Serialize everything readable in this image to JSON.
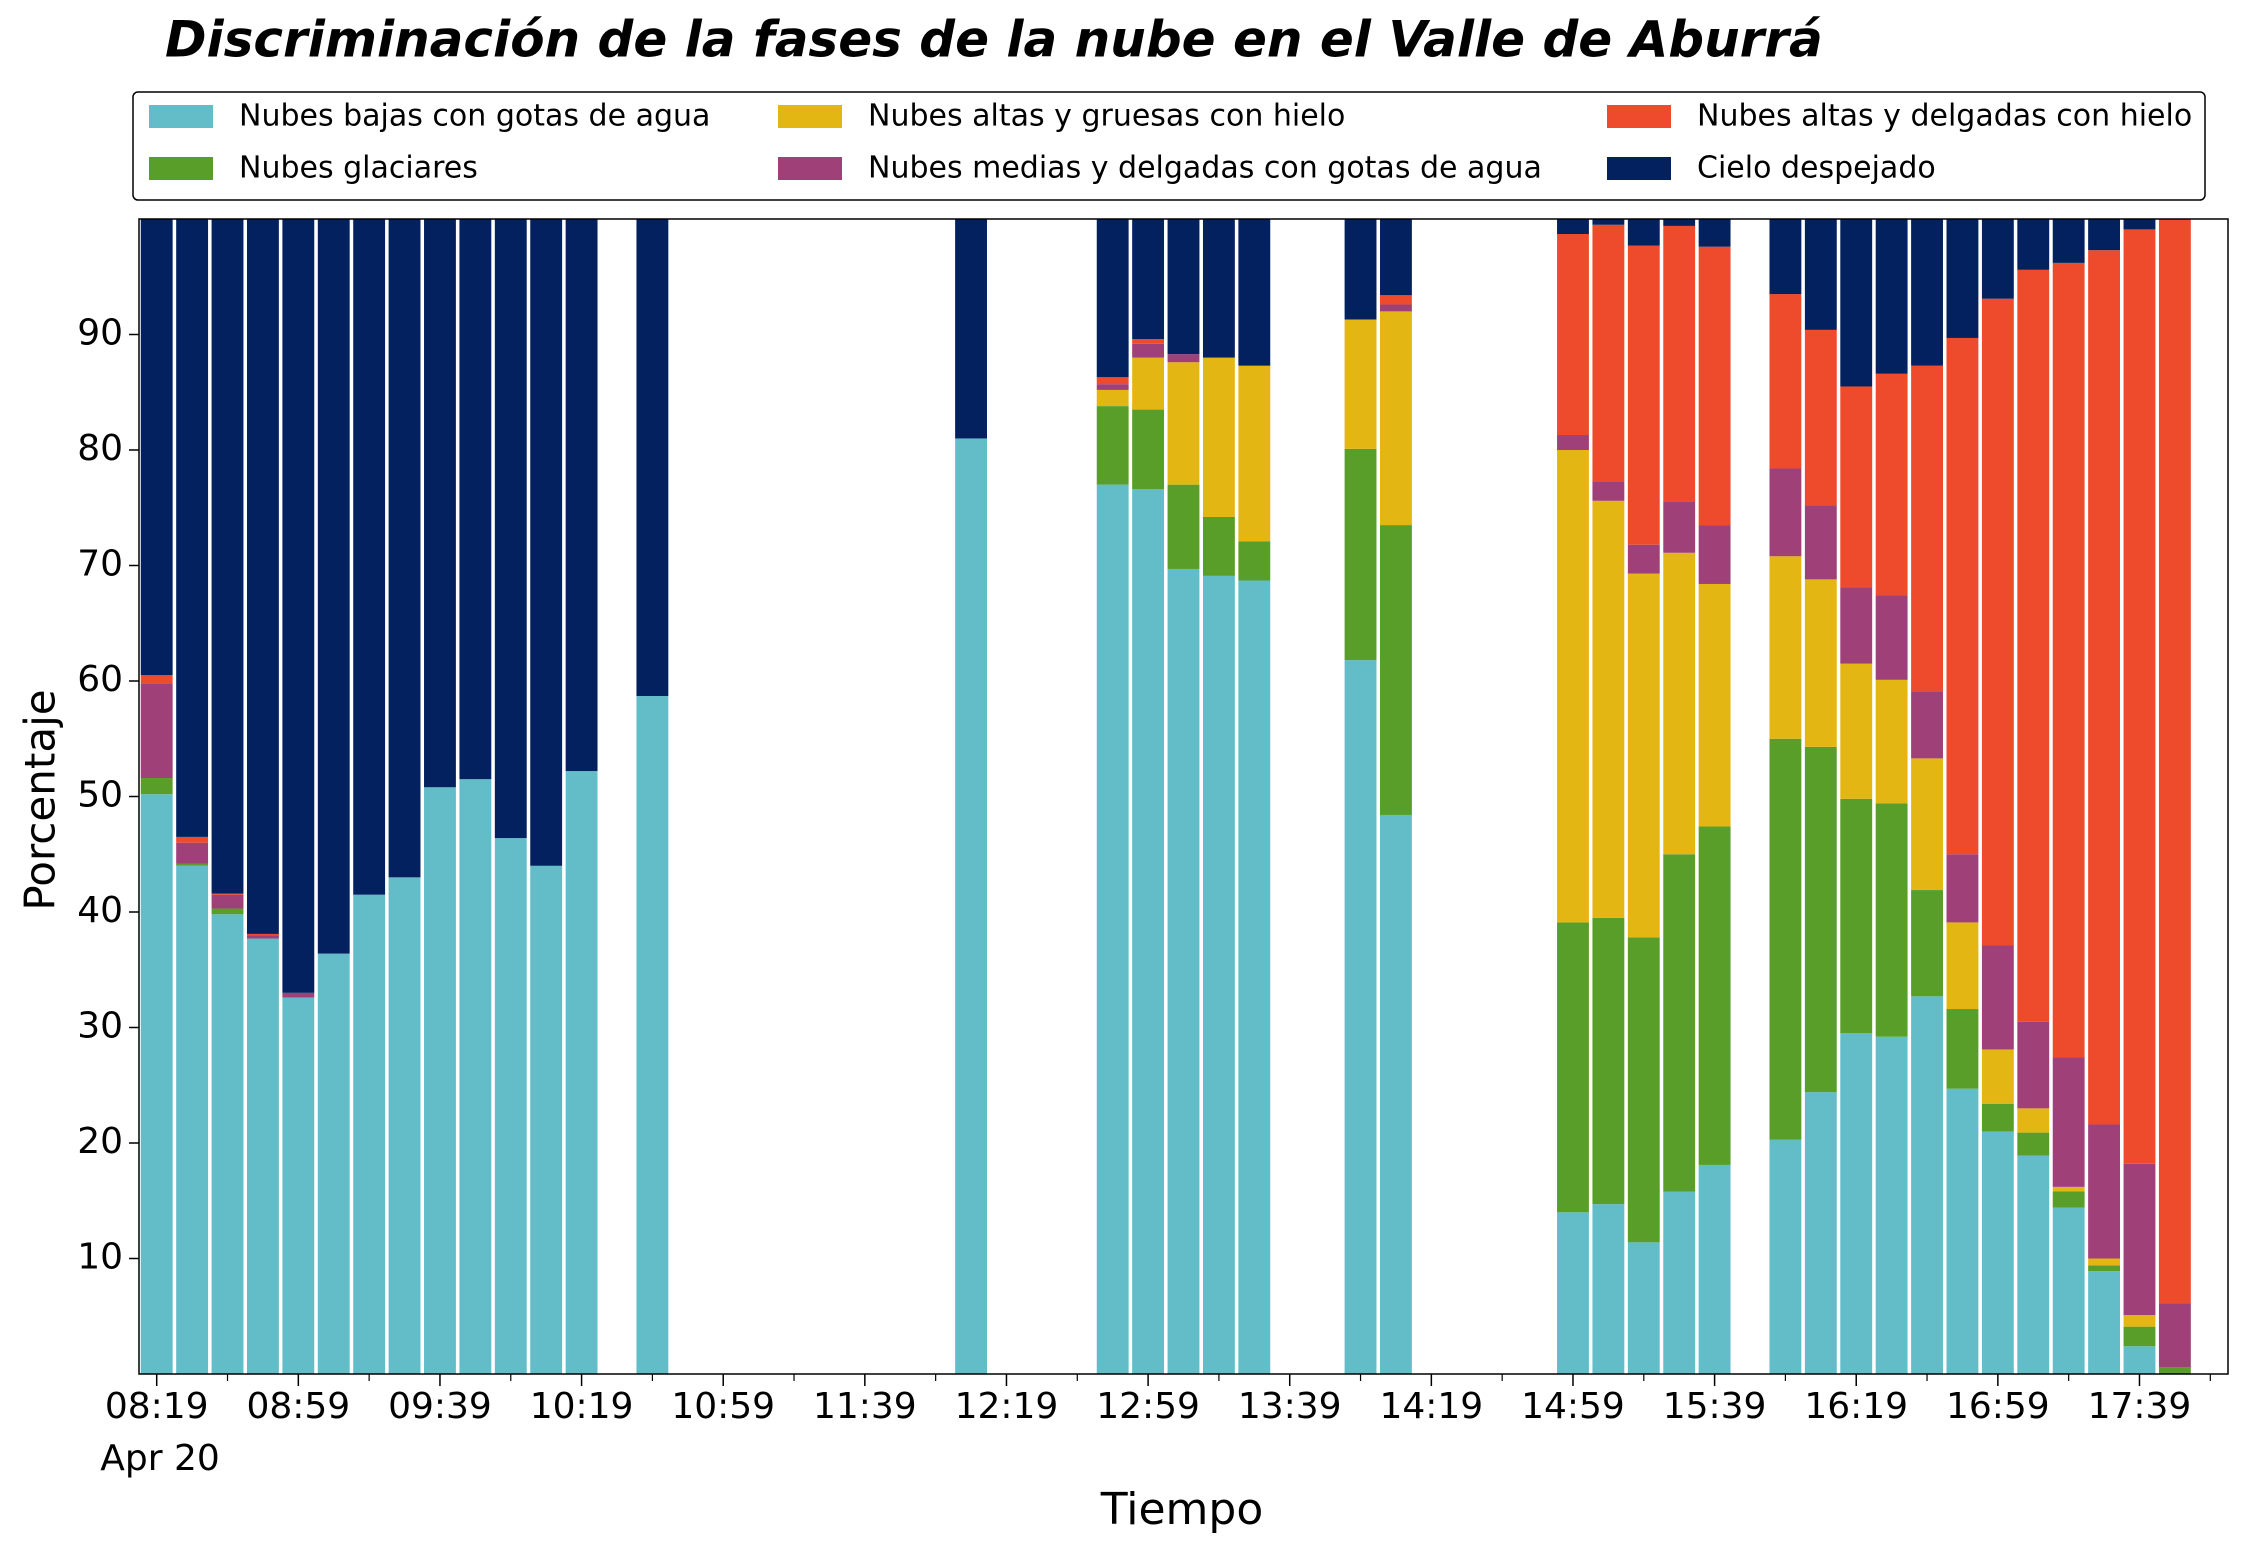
{
  "chart_data": {
    "type": "bar",
    "stacked": true,
    "title": "Discriminación de la fases de la nube en el Valle de Aburrá",
    "xlabel": "Tiempo",
    "ylabel": "Porcentaje",
    "date_label": "Apr 20",
    "legend": "top",
    "x": [
      "08:19",
      "08:29",
      "08:39",
      "08:49",
      "08:59",
      "09:09",
      "09:19",
      "09:29",
      "09:39",
      "09:49",
      "09:59",
      "10:09",
      "10:19",
      "10:39",
      "12:09",
      "12:49",
      "12:59",
      "13:09",
      "13:19",
      "13:29",
      "13:59",
      "14:09",
      "14:59",
      "15:09",
      "15:19",
      "15:29",
      "15:39",
      "15:59",
      "16:09",
      "16:19",
      "16:29",
      "16:39",
      "16:49",
      "16:59",
      "17:09",
      "17:19",
      "17:29",
      "17:39",
      "17:49"
    ],
    "series": [
      {
        "name": "Nubes bajas con gotas de agua",
        "color": "#62bdc9",
        "values": [
          50.2,
          44.0,
          39.8,
          37.7,
          32.6,
          36.4,
          41.5,
          43.0,
          50.8,
          51.5,
          46.4,
          44.0,
          52.2,
          58.7,
          81.0,
          77.0,
          76.6,
          69.7,
          69.1,
          68.7,
          61.8,
          48.4,
          14.0,
          14.7,
          11.4,
          15.8,
          18.1,
          20.3,
          24.4,
          29.5,
          29.2,
          32.7,
          24.7,
          21.0,
          18.9,
          14.4,
          8.9,
          2.4,
          0
        ]
      },
      {
        "name": "Nubes glaciares",
        "color": "#5a9e2a",
        "values": [
          1.4,
          0.2,
          0.5,
          0,
          0,
          0,
          0,
          0,
          0,
          0,
          0,
          0,
          0,
          0,
          0,
          6.8,
          6.9,
          7.3,
          5.1,
          3.4,
          18.3,
          25.1,
          25.1,
          24.8,
          26.4,
          29.2,
          29.3,
          34.7,
          29.9,
          20.3,
          20.2,
          9.2,
          6.9,
          2.4,
          2.0,
          1.4,
          0.5,
          1.7,
          0.6
        ]
      },
      {
        "name": "Nubes altas y gruesas con hielo",
        "color": "#e3b614",
        "values": [
          0,
          0,
          0,
          0,
          0,
          0,
          0,
          0,
          0,
          0,
          0,
          0,
          0,
          0,
          0,
          1.4,
          4.5,
          10.6,
          13.8,
          15.2,
          11.2,
          18.5,
          40.9,
          36.1,
          31.5,
          26.1,
          21.0,
          15.8,
          14.5,
          11.7,
          10.7,
          11.4,
          7.5,
          4.7,
          2.1,
          0.4,
          0.6,
          1.0,
          0
        ]
      },
      {
        "name": "Nubes medias y delgadas con gotas de agua",
        "color": "#a04079",
        "values": [
          8.2,
          1.8,
          1.2,
          0.3,
          0.4,
          0,
          0,
          0,
          0,
          0,
          0,
          0,
          0,
          0,
          0,
          0.5,
          1.2,
          0.7,
          0,
          0,
          0,
          0.6,
          1.3,
          1.7,
          2.5,
          4.4,
          5.1,
          7.6,
          6.4,
          6.6,
          7.3,
          5.8,
          5.9,
          9.0,
          7.5,
          11.2,
          11.6,
          13.1,
          5.5
        ]
      },
      {
        "name": "Nubes altas y delgadas con hielo",
        "color": "#ee4a2c",
        "values": [
          0.7,
          0.5,
          0.1,
          0.1,
          0,
          0,
          0,
          0,
          0,
          0,
          0,
          0,
          0,
          0,
          0,
          0.6,
          0.4,
          0,
          0,
          0,
          0,
          0.8,
          17.4,
          22.2,
          25.9,
          23.9,
          24.1,
          15.1,
          15.2,
          17.4,
          19.2,
          28.2,
          44.7,
          56.0,
          65.1,
          68.8,
          75.7,
          80.9,
          93.9
        ]
      },
      {
        "name": "Cielo despejado",
        "color": "#03215e",
        "values": [
          39.5,
          53.5,
          58.4,
          61.9,
          67.0,
          63.6,
          58.5,
          57.0,
          49.2,
          48.5,
          53.6,
          56.0,
          47.8,
          41.3,
          19.0,
          13.7,
          10.4,
          11.7,
          12.0,
          12.7,
          8.7,
          6.6,
          1.3,
          0.5,
          2.3,
          0.6,
          2.4,
          6.5,
          9.6,
          14.5,
          13.4,
          12.7,
          10.3,
          6.9,
          4.4,
          3.8,
          2.7,
          0.9,
          0
        ]
      }
    ],
    "xlim": [
      "08:14",
      "18:04"
    ],
    "xticks": [
      "08:19",
      "08:59",
      "09:39",
      "10:19",
      "10:59",
      "11:39",
      "12:19",
      "12:59",
      "13:39",
      "14:19",
      "14:59",
      "15:39",
      "16:19",
      "16:59",
      "17:39"
    ],
    "xminorticks": [
      "08:39",
      "09:19",
      "09:59",
      "10:39",
      "11:19",
      "11:59",
      "12:39",
      "13:19",
      "13:59",
      "14:39",
      "15:19",
      "15:59",
      "16:39",
      "17:19",
      "17:59"
    ],
    "ylim": [
      0,
      100
    ],
    "yticks": [
      10,
      20,
      30,
      40,
      50,
      60,
      70,
      80,
      90
    ],
    "grid": false
  }
}
